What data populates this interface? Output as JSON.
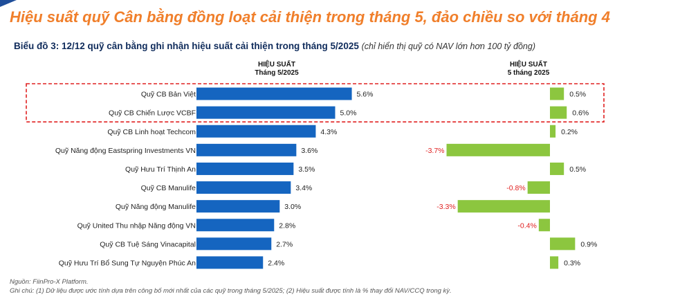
{
  "headline": "Hiệu suất quỹ Cân bằng đồng loạt cải thiện trong tháng 5, đảo chiều so với tháng 4",
  "chart_title": "Biểu đồ 3: 12/12 quỹ cân bằng ghi nhận hiệu suất cải thiện trong tháng 5/2025",
  "chart_note": "(chỉ hiển thị quỹ có NAV lớn hơn 100 tỷ đồng)",
  "columns": {
    "left_title": "HIỆU SUẤT",
    "left_sub": "Tháng 5/2025",
    "right_title": "HIỆU SUẤT",
    "right_sub": "5 tháng 2025"
  },
  "colors": {
    "headline": "#f07f2b",
    "title": "#0f2b5b",
    "bar_blue": "#1565c0",
    "bar_green": "#8cc63f",
    "negative_label": "#e02020",
    "highlight_border": "#e02020"
  },
  "chart_data": {
    "type": "bar",
    "categories": [
      "Quỹ CB Bản Việt",
      "Quỹ CB Chiến Lược VCBF",
      "Quỹ CB Linh hoạt Techcom",
      "Quỹ Năng động Eastspring Investments VN",
      "Quỹ Hưu Trí Thịnh An",
      "Quỹ CB Manulife",
      "Quỹ Năng động Manulife",
      "Quỹ United Thu nhập Năng động VN",
      "Quỹ CB Tuệ Sáng Vinacapital",
      "Quỹ Hưu Trí Bổ Sung Tự Nguyện Phúc An"
    ],
    "series": [
      {
        "name": "Tháng 5/2025",
        "values": [
          5.6,
          5.0,
          4.3,
          3.6,
          3.5,
          3.4,
          3.0,
          2.8,
          2.7,
          2.4
        ],
        "labels": [
          "5.6%",
          "5.0%",
          "4.3%",
          "3.6%",
          "3.5%",
          "3.4%",
          "3.0%",
          "2.8%",
          "2.7%",
          "2.4%"
        ]
      },
      {
        "name": "5 tháng 2025",
        "values": [
          0.5,
          0.6,
          0.2,
          -3.7,
          0.5,
          -0.8,
          -3.3,
          -0.4,
          0.9,
          0.3
        ],
        "labels": [
          "0.5%",
          "0.6%",
          "0.2%",
          "-3.7%",
          "0.5%",
          "-0.8%",
          "-3.3%",
          "-0.4%",
          "0.9%",
          "0.3%"
        ]
      }
    ],
    "highlighted_categories": [
      "Quỹ CB Bản Việt",
      "Quỹ CB Chiến Lược VCBF"
    ],
    "grid": false,
    "legend": "none"
  },
  "footnotes": {
    "source": "Nguồn: FiinPro-X Platform.",
    "note": "Ghi chú: (1) Dữ liệu được ước tính dựa trên công bố mới nhất của các quỹ trong tháng 5/2025; (2) Hiệu suất được tính là % thay đổi NAV/CCQ trong kỳ."
  }
}
